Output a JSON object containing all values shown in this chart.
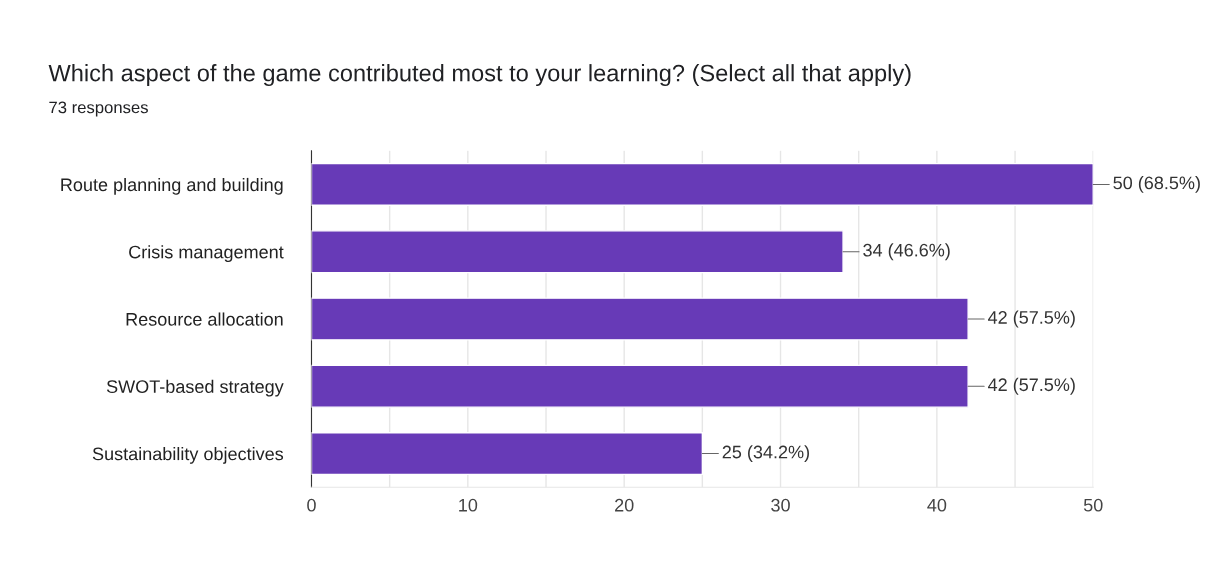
{
  "chart_data": {
    "type": "bar",
    "orientation": "horizontal",
    "title": "Which aspect of the game contributed most to your learning? (Select all that apply)",
    "subtitle": "73 responses",
    "categories": [
      "Route planning and building",
      "Crisis management",
      "Resource allocation",
      "SWOT-based strategy",
      "Sustainability objectives"
    ],
    "values": [
      50,
      34,
      42,
      42,
      25
    ],
    "value_labels": [
      "50 (68.5%)",
      "34 (46.6%)",
      "42 (57.5%)",
      "42 (57.5%)",
      "25 (34.2%)"
    ],
    "color": "#673ab7",
    "xlim": [
      0,
      50
    ],
    "xticks": [
      0,
      {
        "value": 5,
        "label": null
      },
      10,
      {
        "value": 15,
        "label": null
      },
      20,
      {
        "value": 25,
        "label": null
      },
      30,
      {
        "value": 35,
        "label": null
      },
      40,
      {
        "value": 45,
        "label": null
      },
      50
    ],
    "grid": "x"
  }
}
